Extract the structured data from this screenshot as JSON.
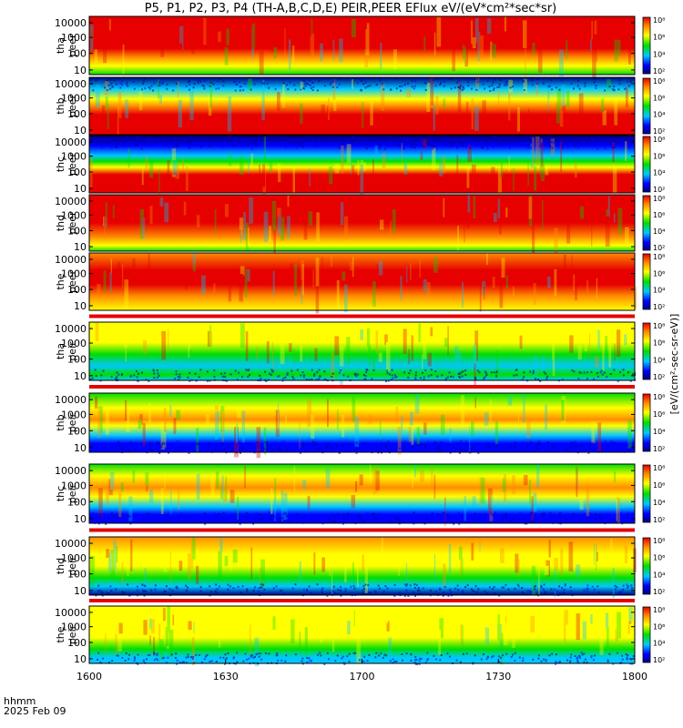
{
  "title": "P5, P1, P2, P3, P4 (TH-A,B,C,D,E) PEIR,PEER EFlux eV/(eV*cm²*sec*sr)",
  "colorbar_unit": "[eV/(cm²-sec-sr-eV)]",
  "corner_label_1": "hhmm",
  "corner_label_2": "2025 Feb 09",
  "colors": {
    "red": "#e60000",
    "orange": "#ff8c00",
    "yellow": "#ffff00",
    "green": "#00dd00",
    "cyan": "#00c8ff",
    "blue": "#0000ff",
    "navy": "#000080"
  },
  "chart_data": {
    "type": "heatmap",
    "x_ticks": [
      "1600",
      "1630",
      "1700",
      "1730",
      "1800"
    ],
    "y_ticks": [
      "10",
      "100",
      "1000",
      "10000"
    ],
    "colorbar_ticks": [
      "10²",
      "10⁴",
      "10⁶",
      "10⁸"
    ],
    "panels": [
      {
        "probe": "tha",
        "species": "peer"
      },
      {
        "probe": "thb",
        "species": "peer"
      },
      {
        "probe": "thc",
        "species": "peer"
      },
      {
        "probe": "thd",
        "species": "peer"
      },
      {
        "probe": "the",
        "species": "peer"
      },
      {
        "probe": "tha",
        "species": "peir"
      },
      {
        "probe": "thb",
        "species": "peir"
      },
      {
        "probe": "thc",
        "species": "peir"
      },
      {
        "probe": "thd",
        "species": "peir"
      },
      {
        "probe": "the",
        "species": "peir"
      }
    ]
  }
}
